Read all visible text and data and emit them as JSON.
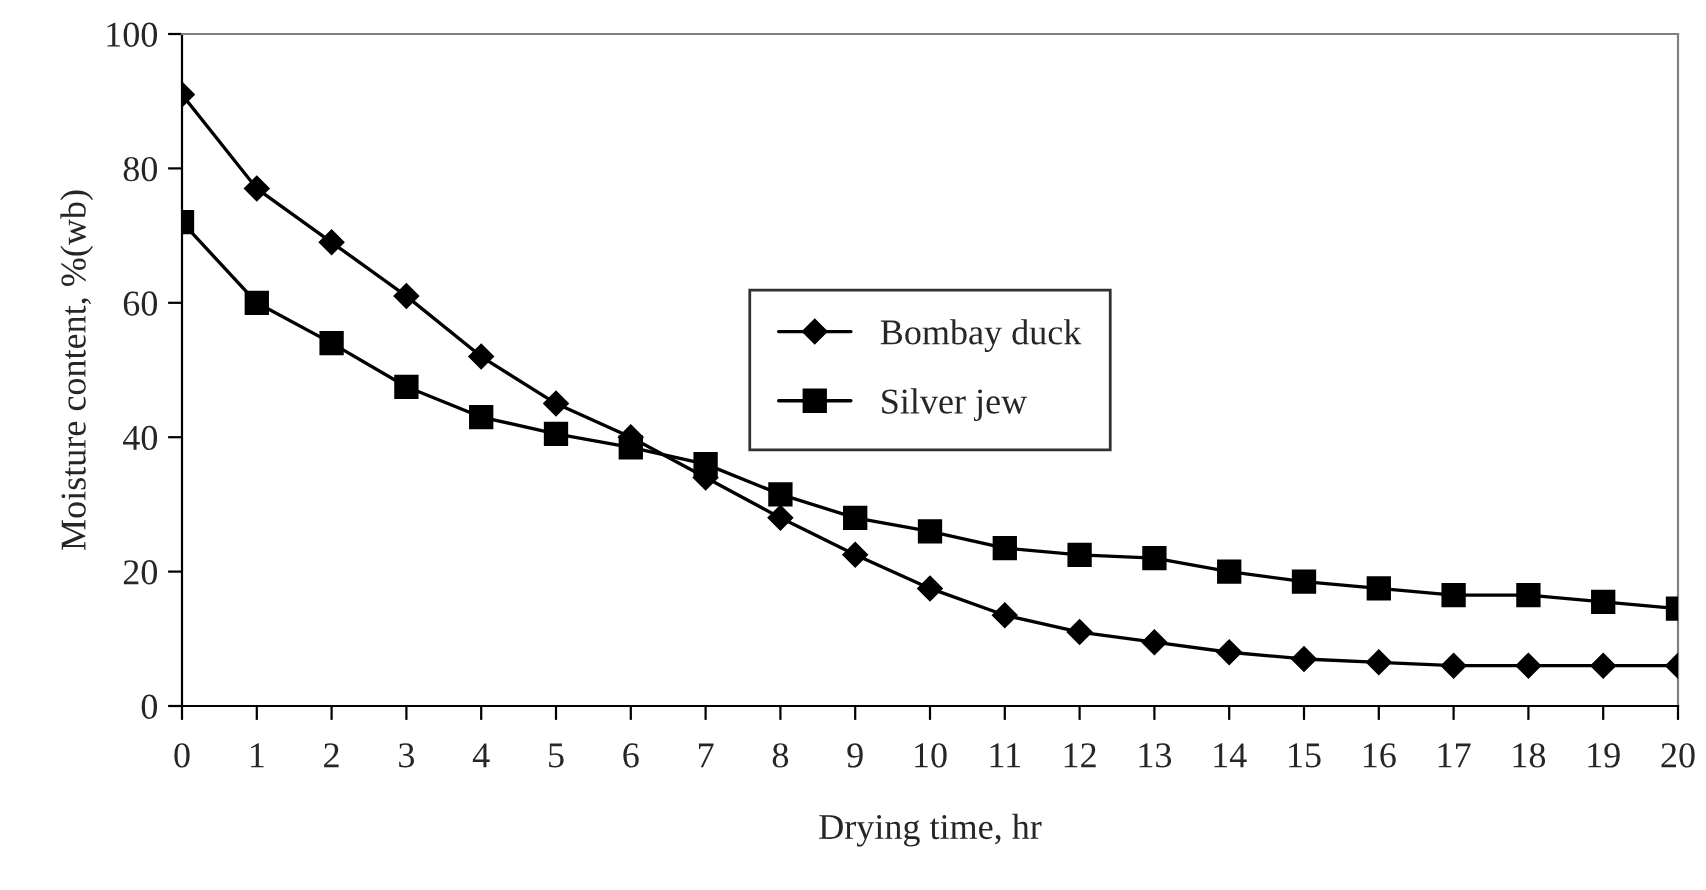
{
  "chart_data": {
    "type": "line",
    "xlabel": "Drying time, hr",
    "ylabel": "Moisture content, %(wb)",
    "x": [
      0,
      1,
      2,
      3,
      4,
      5,
      6,
      7,
      8,
      9,
      10,
      11,
      12,
      13,
      14,
      15,
      16,
      17,
      18,
      19,
      20
    ],
    "series": [
      {
        "name": "Bombay duck",
        "color": "#000000",
        "marker": "diamond",
        "values": [
          91,
          77,
          69,
          61,
          52,
          45,
          40,
          34,
          28,
          22.5,
          17.5,
          13.5,
          11,
          9.5,
          8,
          7,
          6.5,
          6,
          6,
          6,
          6
        ]
      },
      {
        "name": "Silver jew",
        "color": "#000000",
        "marker": "square",
        "values": [
          72,
          60,
          54,
          47.5,
          43,
          40.5,
          38.5,
          36,
          31.5,
          28,
          26,
          23.5,
          22.5,
          22,
          20,
          18.5,
          17.5,
          16.5,
          16.5,
          15.5,
          14.5
        ]
      }
    ],
    "xlim": [
      0,
      20
    ],
    "xticks": [
      0,
      1,
      2,
      3,
      4,
      5,
      6,
      7,
      8,
      9,
      10,
      11,
      12,
      13,
      14,
      15,
      16,
      17,
      18,
      19,
      20
    ],
    "ylim": [
      0,
      100
    ],
    "yticks": [
      0,
      20,
      40,
      60,
      80,
      100
    ],
    "grid": false,
    "legend": "center",
    "line_style": "solid"
  }
}
